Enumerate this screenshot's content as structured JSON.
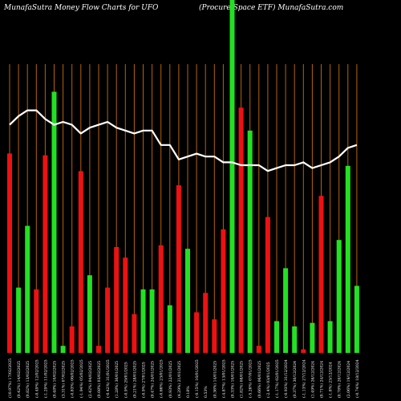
{
  "header": {
    "title_left": "MunafaSutra  Money Flow  Charts for UFO",
    "title_right": "(Procure   Space   ETF) MunafaSutra.com"
  },
  "colors": {
    "background": "#000000",
    "gridline": "#b8620b",
    "up_bar": "#22e122",
    "down_bar": "#ee1111",
    "price_line": "#ffffff"
  },
  "chart_data": {
    "type": "bar",
    "grid": true,
    "bar_value_range": [
      0,
      100
    ],
    "line_value_range": [
      0,
      100
    ],
    "bars": [
      {
        "date": "Mon 17 Feb 2025",
        "value": 56.5,
        "direction": "down"
      },
      {
        "date": "Fri 14 Feb 2025",
        "value": 18.5,
        "direction": "up"
      },
      {
        "date": "Thu 13 Feb 2025",
        "value": 36.0,
        "direction": "up"
      },
      {
        "date": "Wed 12 Feb 2025",
        "value": 18.0,
        "direction": "down"
      },
      {
        "date": "Tue 11 Feb 2025",
        "value": 56.0,
        "direction": "down"
      },
      {
        "date": "Mon 10 Feb 2025",
        "value": 74.0,
        "direction": "up"
      },
      {
        "date": "Fri 07 Feb 2025",
        "value": 2.0,
        "direction": "up"
      },
      {
        "date": "Thu 06 Feb 2025",
        "value": 7.5,
        "direction": "down"
      },
      {
        "date": "Wed 05 Feb 2025",
        "value": 51.5,
        "direction": "down"
      },
      {
        "date": "Tue 04 Feb 2025",
        "value": 22.0,
        "direction": "up"
      },
      {
        "date": "Mon 03 Feb 2025",
        "value": 2.0,
        "direction": "down"
      },
      {
        "date": "Fri 31 Jan 2025",
        "value": 18.5,
        "direction": "down"
      },
      {
        "date": "Thu 30 Jan 2025",
        "value": 30.0,
        "direction": "down"
      },
      {
        "date": "Wed 29 Jan 2025",
        "value": 27.0,
        "direction": "down"
      },
      {
        "date": "Tue 28 Jan 2025",
        "value": 11.0,
        "direction": "down"
      },
      {
        "date": "Mon 27 Jan 2025",
        "value": 18.0,
        "direction": "up"
      },
      {
        "date": "Fri 24 Jan 2025",
        "value": 18.0,
        "direction": "up"
      },
      {
        "date": "Thu 23 Jan 2025",
        "value": 30.5,
        "direction": "down"
      },
      {
        "date": "Wed 22 Jan 2025",
        "value": 13.5,
        "direction": "up"
      },
      {
        "date": "Tue 21 Jan 2025",
        "value": 47.5,
        "direction": "down"
      },
      {
        "date": "Fri 17 Jan 2025",
        "value": 29.5,
        "direction": "up"
      },
      {
        "date": "Thu 16 Jan 2025",
        "value": 11.5,
        "direction": "down"
      },
      {
        "date": "Wed 15 Jan 2025",
        "value": 17.0,
        "direction": "down"
      },
      {
        "date": "Tue 14 Jan 2025",
        "value": 9.5,
        "direction": "down"
      },
      {
        "date": "Mon 13 Jan 2025",
        "value": 35.0,
        "direction": "down"
      },
      {
        "date": "Fri 10 Jan 2025",
        "value": 100.0,
        "direction": "up"
      },
      {
        "date": "Wed 08 Jan 2025",
        "value": 69.5,
        "direction": "down"
      },
      {
        "date": "Tue 07 Jan 2025",
        "value": 63.0,
        "direction": "up"
      },
      {
        "date": "Mon 06 Jan 2025",
        "value": 2.0,
        "direction": "down"
      },
      {
        "date": "Fri 03 Jan 2025",
        "value": 38.5,
        "direction": "down"
      },
      {
        "date": "Thu 02 Jan 2025",
        "value": 9.0,
        "direction": "up"
      },
      {
        "date": "Tue 31 Dec 2024",
        "value": 24.0,
        "direction": "up"
      },
      {
        "date": "Mon 30 Dec 2024",
        "value": 7.5,
        "direction": "up"
      },
      {
        "date": "Fri 27 Dec 2024",
        "value": 1.0,
        "direction": "down"
      },
      {
        "date": "Thu 26 Dec 2024",
        "value": 8.5,
        "direction": "up"
      },
      {
        "date": "Tue 24 Dec 2024",
        "value": 44.5,
        "direction": "down"
      },
      {
        "date": "Mon 23 Dec 2024",
        "value": 9.0,
        "direction": "up"
      },
      {
        "date": "Fri 20 Dec 2024",
        "value": 32.0,
        "direction": "up"
      },
      {
        "date": "Thu 19 Dec 2024",
        "value": 53.0,
        "direction": "up"
      },
      {
        "date": "Wed 18 Dec 2024",
        "value": 19.0,
        "direction": "up"
      }
    ],
    "price_line": [
      79,
      82,
      84,
      84,
      81,
      79,
      80,
      79,
      76,
      78,
      79,
      80,
      78,
      77,
      76,
      77,
      77,
      72,
      72,
      67,
      68,
      69,
      68,
      68,
      66,
      66,
      65,
      65,
      65,
      63,
      64,
      65,
      65,
      66,
      64,
      65,
      66,
      68,
      71,
      72
    ],
    "x_labels": [
      "(10.97%) 17/02/2025",
      "(0.42%) 14/02/2025",
      "(0.82%) 13/02/2025",
      "(-0.49%) 12/02/2025",
      "(-1.29%) 11/02/2025",
      "(0.48%) 10/02/2025",
      "(3.31%) 07/02/2025",
      "(-0.83%) 06/02/2025",
      "(-1.94%) 05/02/2025",
      "(2.42%) 04/02/2025",
      "(0.08%) 03/02/2025",
      "(-0.42%) 31/01/2025",
      "(1.28%) 30/01/2025",
      "(-0.9%) 29/01/2025",
      "(0.21%) 28/01/2025",
      "(-0.9%) 27/01/2025",
      "(0.47%) 24/01/2025",
      "(-0.66%) 23/01/2025",
      "(0.93%) 22/01/2025",
      "(4.29%) 21/01/2025",
      "0.18%",
      "(-0.15%) 16/01/2025",
      "0.53%",
      "(0.36%) 14/01/2025",
      "(-4.87%) 13/01/2025",
      "(0.33%) 10/01/2025",
      "(1.82%) 08/01/2025",
      "(-5.26%) 07/01/2025",
      "(0.66%) 06/01/2025",
      "(-2.4%) 03/01/2025",
      "(-1.17%) 02/01/2025",
      "(-0.93%) 31/12/2024",
      "(0.37%) 30/12/2024",
      "(-1.13%) 27/12/2024",
      "(1.49%) 26/12/2024",
      "(0.71%) 24/12/2024",
      "(-1.8%) 23/12/2024",
      "(0.78%) 20/12/2024",
      "(2.06%) 19/12/2024",
      "(-0.74%) 18/12/2024"
    ]
  }
}
